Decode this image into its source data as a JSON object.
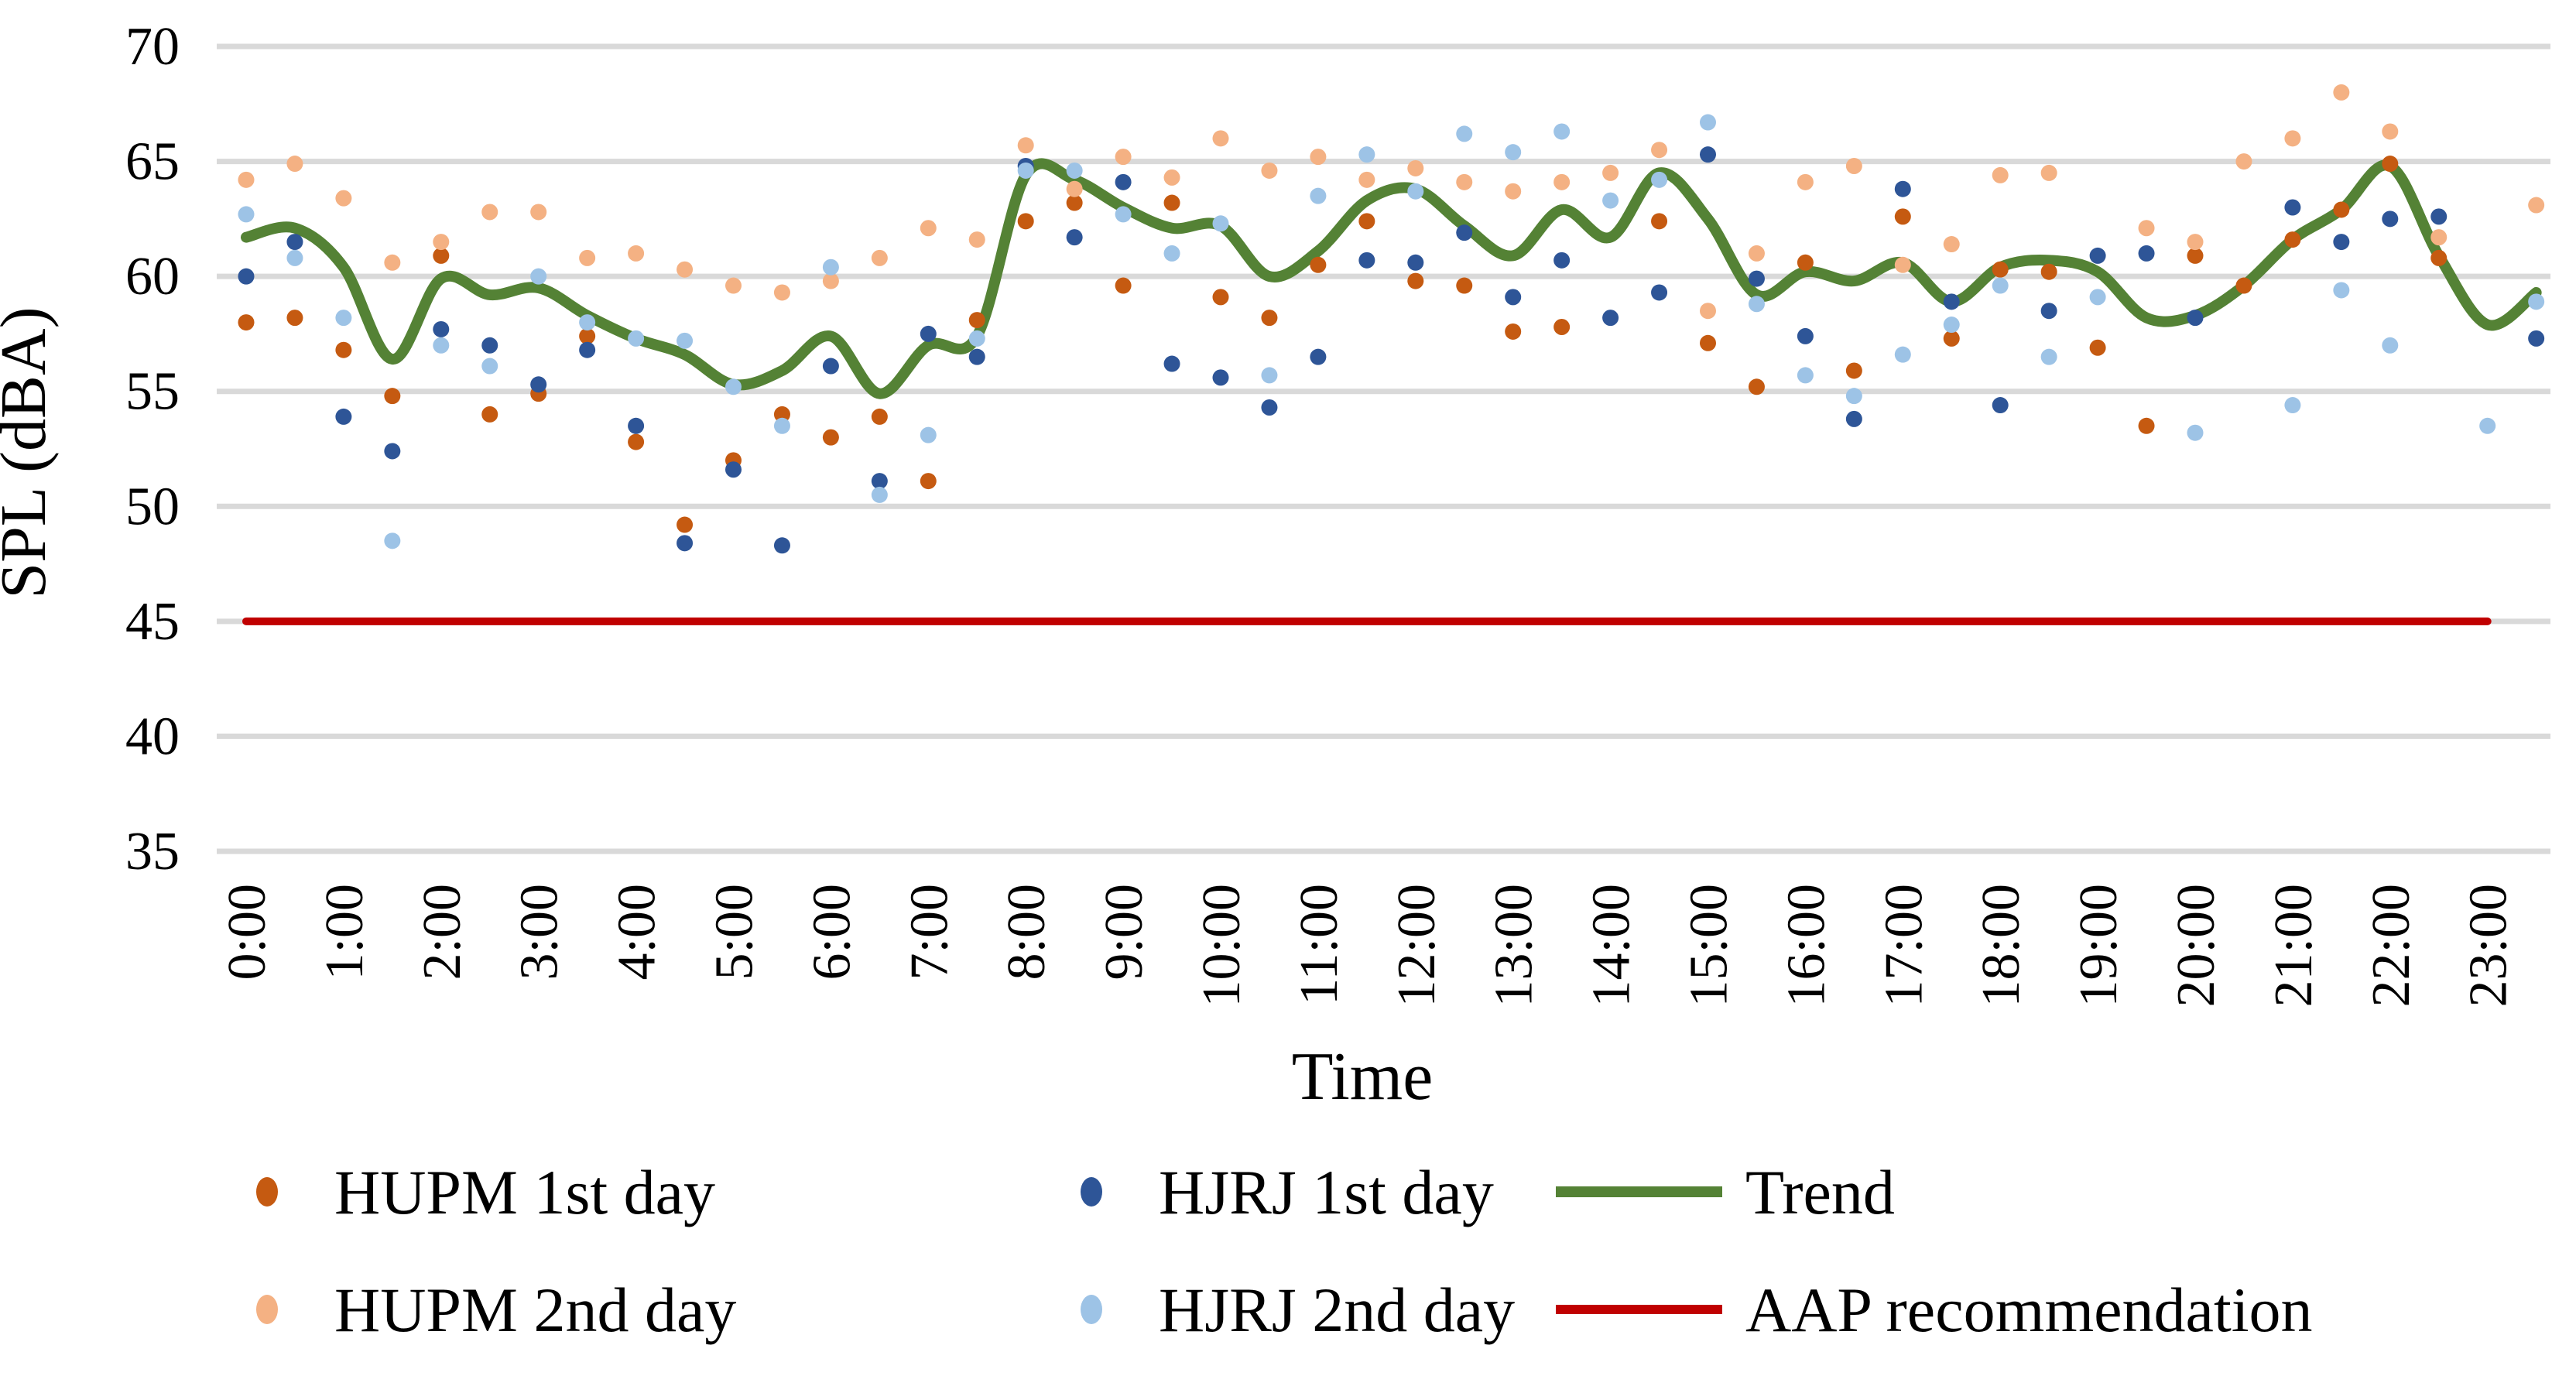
{
  "y_axis": {
    "label": "SPL (dBA)",
    "ticks": [
      70,
      65,
      60,
      55,
      50,
      45,
      40,
      35
    ],
    "min": 35,
    "max": 70
  },
  "x_axis": {
    "label": "Time",
    "ticks": [
      "0:00",
      "1:00",
      "2:00",
      "3:00",
      "4:00",
      "5:00",
      "6:00",
      "7:00",
      "8:00",
      "9:00",
      "10:00",
      "11:00",
      "12:00",
      "13:00",
      "14:00",
      "15:00",
      "16:00",
      "17:00",
      "18:00",
      "19:00",
      "20:00",
      "21:00",
      "22:00",
      "23:00"
    ]
  },
  "colors": {
    "hupm1": "#C55A11",
    "hupm2": "#F4B183",
    "hjrj1": "#2E5597",
    "hjrj2": "#9DC3E6",
    "trend": "#548235",
    "aap": "#C00000",
    "grid": "#D9D9D9"
  },
  "legend": {
    "rows": [
      [
        {
          "type": "dot",
          "series": "hupm1",
          "label": "HUPM 1st day"
        },
        {
          "type": "dot",
          "series": "hjrj1",
          "label": "HJRJ 1st day"
        },
        {
          "type": "line",
          "series": "trend",
          "label": "Trend"
        }
      ],
      [
        {
          "type": "dot",
          "series": "hupm2",
          "label": "HUPM 2nd day"
        },
        {
          "type": "dot",
          "series": "hjrj2",
          "label": "HJRJ 2nd day"
        },
        {
          "type": "line",
          "series": "aap",
          "label": "AAP recommendation"
        }
      ]
    ]
  },
  "chart_data": {
    "type": "scatter",
    "title": "",
    "xlabel": "Time",
    "ylabel": "SPL (dBA)",
    "ylim": [
      35,
      70
    ],
    "grid": "horizontal",
    "legend_position": "bottom",
    "time_slots": [
      "0:00",
      "0:30",
      "1:00",
      "1:30",
      "2:00",
      "2:30",
      "3:00",
      "3:30",
      "4:00",
      "4:30",
      "5:00",
      "5:30",
      "6:00",
      "6:30",
      "7:00",
      "7:30",
      "8:00",
      "8:30",
      "9:00",
      "9:30",
      "10:00",
      "10:30",
      "11:00",
      "11:30",
      "12:00",
      "12:30",
      "13:00",
      "13:30",
      "14:00",
      "14:30",
      "15:00",
      "15:30",
      "16:00",
      "16:30",
      "17:00",
      "17:30",
      "18:00",
      "18:30",
      "19:00",
      "19:30",
      "20:00",
      "20:30",
      "21:00",
      "21:30",
      "22:00",
      "22:30",
      "23:00",
      "23:30"
    ],
    "series": [
      {
        "name": "HUPM 1st day",
        "key": "hupm1",
        "type": "scatter",
        "values": [
          58.0,
          58.2,
          56.8,
          54.8,
          60.9,
          54.0,
          54.9,
          57.4,
          52.8,
          49.2,
          52.0,
          54.0,
          53.0,
          53.9,
          51.1,
          58.1,
          62.4,
          63.2,
          59.6,
          63.2,
          59.1,
          58.2,
          60.5,
          62.4,
          59.8,
          59.6,
          57.6,
          57.8,
          null,
          62.4,
          57.1,
          55.2,
          60.6,
          55.9,
          62.6,
          57.3,
          60.3,
          60.2,
          56.9,
          53.5,
          60.9,
          59.6,
          61.6,
          62.9,
          64.9,
          60.8,
          null,
          null
        ]
      },
      {
        "name": "HUPM 2nd day",
        "key": "hupm2",
        "type": "scatter",
        "values": [
          64.2,
          64.9,
          63.4,
          60.6,
          61.5,
          62.8,
          62.8,
          60.8,
          61.0,
          60.3,
          59.6,
          59.3,
          59.8,
          60.8,
          62.1,
          61.6,
          65.7,
          63.8,
          65.2,
          64.3,
          66.0,
          64.6,
          65.2,
          64.2,
          64.7,
          64.1,
          63.7,
          64.1,
          64.5,
          65.5,
          58.5,
          61.0,
          64.1,
          64.8,
          60.5,
          61.4,
          64.4,
          64.5,
          null,
          62.1,
          61.5,
          65.0,
          66.0,
          68.0,
          66.3,
          61.7,
          null,
          63.1
        ]
      },
      {
        "name": "HJRJ 1st day",
        "key": "hjrj1",
        "type": "scatter",
        "values": [
          60.0,
          61.5,
          53.9,
          52.4,
          57.7,
          57.0,
          55.3,
          56.8,
          53.5,
          48.4,
          51.6,
          48.3,
          56.1,
          51.1,
          57.5,
          56.5,
          64.8,
          61.7,
          64.1,
          56.2,
          55.6,
          54.3,
          56.5,
          60.7,
          60.6,
          61.9,
          59.1,
          60.7,
          58.2,
          59.3,
          65.3,
          59.9,
          57.4,
          53.8,
          63.8,
          58.9,
          54.4,
          58.5,
          60.9,
          61.0,
          58.2,
          null,
          63.0,
          61.5,
          62.5,
          62.6,
          null,
          57.3
        ]
      },
      {
        "name": "HJRJ 2nd day",
        "key": "hjrj2",
        "type": "scatter",
        "values": [
          62.7,
          60.8,
          58.2,
          48.5,
          57.0,
          56.1,
          60.0,
          58.0,
          57.3,
          57.2,
          55.2,
          53.5,
          60.4,
          50.5,
          53.1,
          57.3,
          64.6,
          64.6,
          62.7,
          61.0,
          62.3,
          55.7,
          63.5,
          65.3,
          63.7,
          66.2,
          65.4,
          66.3,
          63.3,
          64.2,
          66.7,
          58.8,
          55.7,
          54.8,
          56.6,
          57.9,
          59.6,
          56.5,
          59.1,
          null,
          53.2,
          null,
          54.4,
          59.4,
          57.0,
          null,
          53.5,
          58.9
        ]
      },
      {
        "name": "Trend",
        "key": "trend",
        "type": "line",
        "values": [
          61.7,
          62.1,
          60.4,
          56.4,
          59.9,
          59.2,
          59.5,
          58.3,
          57.3,
          56.6,
          55.3,
          55.9,
          57.4,
          54.9,
          57.0,
          57.4,
          64.4,
          64.2,
          63.0,
          62.1,
          62.2,
          60.0,
          61.1,
          63.3,
          63.8,
          62.2,
          60.9,
          62.9,
          61.7,
          64.5,
          62.5,
          59.2,
          60.2,
          59.8,
          60.6,
          58.9,
          60.4,
          60.7,
          60.2,
          58.2,
          58.3,
          59.6,
          61.6,
          62.9,
          64.8,
          60.9,
          57.9,
          59.3
        ]
      },
      {
        "name": "AAP recommendation",
        "key": "aap",
        "type": "hline",
        "value": 45
      }
    ]
  }
}
